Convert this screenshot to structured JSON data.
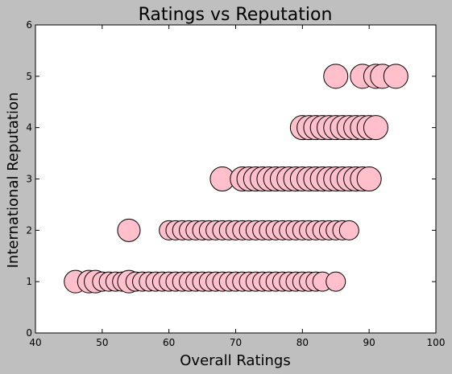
{
  "chart_data": {
    "type": "scatter",
    "title": "Ratings vs Reputation",
    "xlabel": "Overall Ratings",
    "ylabel": "International Reputation",
    "xlim": [
      40,
      100
    ],
    "ylim": [
      0,
      6
    ],
    "xticks": [
      40,
      50,
      60,
      70,
      80,
      90,
      100
    ],
    "yticks": [
      0,
      1,
      2,
      3,
      4,
      5,
      6
    ],
    "grid": false,
    "marker_color": "#ffc0cb",
    "marker_edge": "#000000",
    "background": "#bfbfbf",
    "plot_background": "#ffffff",
    "series": [
      {
        "points": [
          {
            "x": 46,
            "y": 1
          },
          {
            "x": 48,
            "y": 1
          },
          {
            "x": 49,
            "y": 1
          },
          {
            "x": 50,
            "y": 1
          },
          {
            "x": 51,
            "y": 1
          },
          {
            "x": 52,
            "y": 1
          },
          {
            "x": 53,
            "y": 1
          },
          {
            "x": 54,
            "y": 1
          },
          {
            "x": 55,
            "y": 1
          },
          {
            "x": 56,
            "y": 1
          },
          {
            "x": 57,
            "y": 1
          },
          {
            "x": 58,
            "y": 1
          },
          {
            "x": 59,
            "y": 1
          },
          {
            "x": 60,
            "y": 1
          },
          {
            "x": 61,
            "y": 1
          },
          {
            "x": 62,
            "y": 1
          },
          {
            "x": 63,
            "y": 1
          },
          {
            "x": 64,
            "y": 1
          },
          {
            "x": 65,
            "y": 1
          },
          {
            "x": 66,
            "y": 1
          },
          {
            "x": 67,
            "y": 1
          },
          {
            "x": 68,
            "y": 1
          },
          {
            "x": 69,
            "y": 1
          },
          {
            "x": 70,
            "y": 1
          },
          {
            "x": 71,
            "y": 1
          },
          {
            "x": 72,
            "y": 1
          },
          {
            "x": 73,
            "y": 1
          },
          {
            "x": 74,
            "y": 1
          },
          {
            "x": 75,
            "y": 1
          },
          {
            "x": 76,
            "y": 1
          },
          {
            "x": 77,
            "y": 1
          },
          {
            "x": 78,
            "y": 1
          },
          {
            "x": 79,
            "y": 1
          },
          {
            "x": 80,
            "y": 1
          },
          {
            "x": 81,
            "y": 1
          },
          {
            "x": 82,
            "y": 1
          },
          {
            "x": 83,
            "y": 1
          },
          {
            "x": 85,
            "y": 1
          },
          {
            "x": 54,
            "y": 2
          },
          {
            "x": 60,
            "y": 2
          },
          {
            "x": 61,
            "y": 2
          },
          {
            "x": 62,
            "y": 2
          },
          {
            "x": 63,
            "y": 2
          },
          {
            "x": 64,
            "y": 2
          },
          {
            "x": 65,
            "y": 2
          },
          {
            "x": 66,
            "y": 2
          },
          {
            "x": 67,
            "y": 2
          },
          {
            "x": 68,
            "y": 2
          },
          {
            "x": 69,
            "y": 2
          },
          {
            "x": 70,
            "y": 2
          },
          {
            "x": 71,
            "y": 2
          },
          {
            "x": 72,
            "y": 2
          },
          {
            "x": 73,
            "y": 2
          },
          {
            "x": 74,
            "y": 2
          },
          {
            "x": 75,
            "y": 2
          },
          {
            "x": 76,
            "y": 2
          },
          {
            "x": 77,
            "y": 2
          },
          {
            "x": 78,
            "y": 2
          },
          {
            "x": 79,
            "y": 2
          },
          {
            "x": 80,
            "y": 2
          },
          {
            "x": 81,
            "y": 2
          },
          {
            "x": 82,
            "y": 2
          },
          {
            "x": 83,
            "y": 2
          },
          {
            "x": 84,
            "y": 2
          },
          {
            "x": 85,
            "y": 2
          },
          {
            "x": 86,
            "y": 2
          },
          {
            "x": 87,
            "y": 2
          },
          {
            "x": 68,
            "y": 3
          },
          {
            "x": 71,
            "y": 3
          },
          {
            "x": 72,
            "y": 3
          },
          {
            "x": 73,
            "y": 3
          },
          {
            "x": 74,
            "y": 3
          },
          {
            "x": 75,
            "y": 3
          },
          {
            "x": 76,
            "y": 3
          },
          {
            "x": 77,
            "y": 3
          },
          {
            "x": 78,
            "y": 3
          },
          {
            "x": 79,
            "y": 3
          },
          {
            "x": 80,
            "y": 3
          },
          {
            "x": 81,
            "y": 3
          },
          {
            "x": 82,
            "y": 3
          },
          {
            "x": 83,
            "y": 3
          },
          {
            "x": 84,
            "y": 3
          },
          {
            "x": 85,
            "y": 3
          },
          {
            "x": 86,
            "y": 3
          },
          {
            "x": 87,
            "y": 3
          },
          {
            "x": 88,
            "y": 3
          },
          {
            "x": 89,
            "y": 3
          },
          {
            "x": 90,
            "y": 3
          },
          {
            "x": 80,
            "y": 4
          },
          {
            "x": 81,
            "y": 4
          },
          {
            "x": 82,
            "y": 4
          },
          {
            "x": 83,
            "y": 4
          },
          {
            "x": 84,
            "y": 4
          },
          {
            "x": 85,
            "y": 4
          },
          {
            "x": 86,
            "y": 4
          },
          {
            "x": 87,
            "y": 4
          },
          {
            "x": 88,
            "y": 4
          },
          {
            "x": 89,
            "y": 4
          },
          {
            "x": 90,
            "y": 4
          },
          {
            "x": 91,
            "y": 4
          },
          {
            "x": 85,
            "y": 5
          },
          {
            "x": 89,
            "y": 5
          },
          {
            "x": 91,
            "y": 5
          },
          {
            "x": 92,
            "y": 5
          },
          {
            "x": 94,
            "y": 5
          }
        ]
      }
    ]
  }
}
